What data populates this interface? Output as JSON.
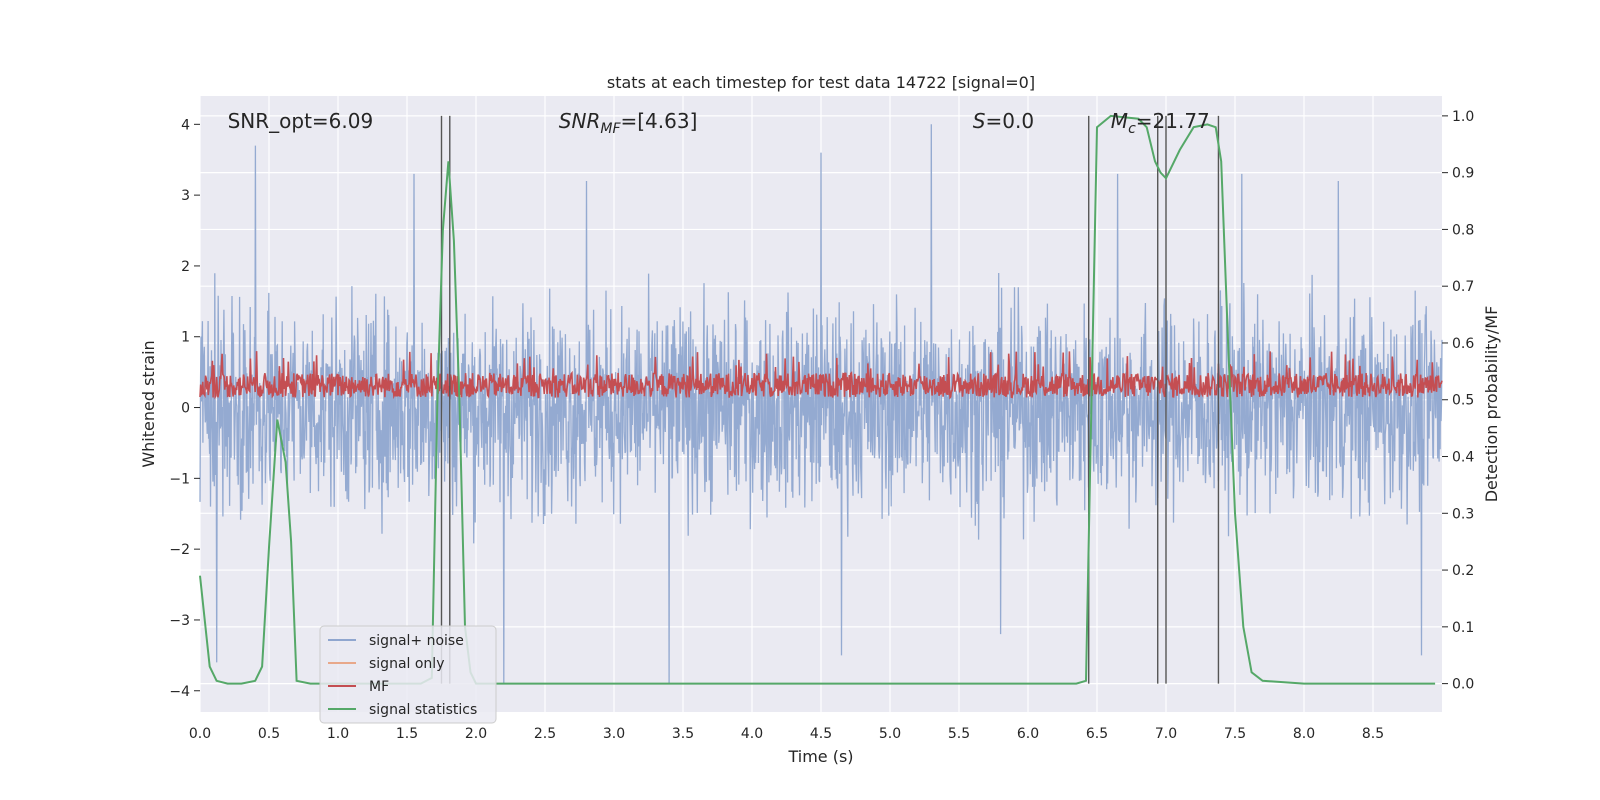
{
  "chart_data": {
    "type": "line",
    "title": "stats at each timestep for test data 14722 [signal=0]",
    "xlabel": "Time (s)",
    "ylabel": "Whitened strain",
    "ylabel_right": "Detection probability/MF",
    "xlim": [
      0,
      9.0
    ],
    "ylim": [
      -4.3,
      4.4
    ],
    "ylim_right": [
      -0.05,
      1.035
    ],
    "x_ticks": [
      "0.0",
      "0.5",
      "1.0",
      "1.5",
      "2.0",
      "2.5",
      "3.0",
      "3.5",
      "4.0",
      "4.5",
      "5.0",
      "5.5",
      "6.0",
      "6.5",
      "7.0",
      "7.5",
      "8.0",
      "8.5"
    ],
    "y_ticks": [
      "4",
      "3",
      "2",
      "1",
      "0",
      "−1",
      "−2",
      "−3",
      "−4"
    ],
    "y_ticks_right": [
      "1.0",
      "0.9",
      "0.8",
      "0.7",
      "0.6",
      "0.5",
      "0.4",
      "0.3",
      "0.2",
      "0.1",
      "0.0"
    ],
    "grid": true,
    "legend_placement": "lower-left",
    "annotations": [
      {
        "text": "SNR_opt=6.09",
        "x": 0.2,
        "y": 4.05
      },
      {
        "text": "SNR_MF=[4.63]",
        "x": 2.6,
        "y": 4.05
      },
      {
        "text": "S=0.0",
        "x": 5.6,
        "y": 4.05
      },
      {
        "text": "M_c=21.77",
        "x": 6.6,
        "y": 4.05
      }
    ],
    "series": [
      {
        "name": "signal+ noise",
        "color": "#8fa6cf",
        "axis": "left",
        "description_range": [
          -3.9,
          4.0
        ],
        "peaks": [
          [
            0.4,
            3.7
          ],
          [
            1.55,
            3.3
          ],
          [
            2.8,
            3.2
          ],
          [
            4.5,
            3.6
          ],
          [
            5.3,
            4.0
          ],
          [
            6.65,
            3.3
          ],
          [
            7.55,
            3.3
          ],
          [
            8.25,
            3.2
          ]
        ],
        "troughs": [
          [
            0.12,
            -3.6
          ],
          [
            2.2,
            -3.9
          ],
          [
            3.4,
            -3.9
          ],
          [
            4.65,
            -3.5
          ],
          [
            5.8,
            -3.2
          ],
          [
            8.85,
            -3.5
          ]
        ]
      },
      {
        "name": "signal only",
        "color": "#e8a88a",
        "axis": "left",
        "values": []
      },
      {
        "name": "MF",
        "color": "#c44e52",
        "axis": "left",
        "description_range": [
          0.05,
          0.8
        ]
      },
      {
        "name": "signal statistics",
        "color": "#55a868",
        "axis": "right",
        "x": [
          0.0,
          0.07,
          0.12,
          0.2,
          0.3,
          0.4,
          0.45,
          0.5,
          0.56,
          0.62,
          0.66,
          0.7,
          0.8,
          1.0,
          1.2,
          1.4,
          1.6,
          1.68,
          1.72,
          1.76,
          1.8,
          1.84,
          1.88,
          1.92,
          1.96,
          2.0,
          2.1,
          3.0,
          4.0,
          5.0,
          6.0,
          6.35,
          6.42,
          6.46,
          6.5,
          6.6,
          6.8,
          6.86,
          6.92,
          6.96,
          7.0,
          7.1,
          7.2,
          7.3,
          7.36,
          7.4,
          7.45,
          7.5,
          7.56,
          7.62,
          7.7,
          8.0,
          8.5,
          8.95
        ],
        "values": [
          0.19,
          0.03,
          0.005,
          0.0,
          0.0,
          0.005,
          0.03,
          0.24,
          0.465,
          0.39,
          0.25,
          0.005,
          0.0,
          0.0,
          0.0,
          0.0,
          0.0,
          0.01,
          0.5,
          0.8,
          0.92,
          0.78,
          0.5,
          0.1,
          0.02,
          0.0,
          0.0,
          0.0,
          0.0,
          0.0,
          0.0,
          0.0,
          0.005,
          0.5,
          0.98,
          1.0,
          0.995,
          0.98,
          0.92,
          0.9,
          0.89,
          0.94,
          0.98,
          0.985,
          0.98,
          0.92,
          0.6,
          0.3,
          0.1,
          0.02,
          0.005,
          0.0,
          0.0,
          0.0
        ]
      }
    ],
    "vlines_right_axis": [
      1.75,
      1.81,
      6.44,
      6.94,
      7.0,
      7.38
    ],
    "vlines_color": "#555555"
  }
}
